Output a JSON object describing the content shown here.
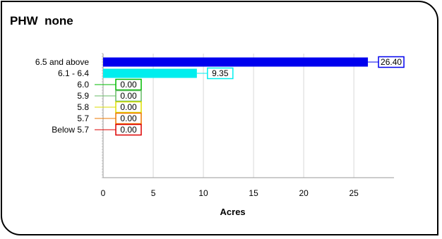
{
  "panel": {
    "title": "PHW  none"
  },
  "chart_data": {
    "type": "bar",
    "orientation": "horizontal",
    "title": "PHW  none",
    "xlabel": "Acres",
    "ylabel": "",
    "xlim": [
      0,
      29
    ],
    "x_ticks": [
      0,
      5,
      10,
      15,
      20,
      25
    ],
    "grid": "vertical",
    "categories": [
      "6.5 and above",
      "6.1 - 6.4",
      "6.0",
      "5.9",
      "5.8",
      "5.7",
      "Below 5.7"
    ],
    "values": [
      26.4,
      9.35,
      0.0,
      0.0,
      0.0,
      0.0,
      0.0
    ],
    "value_labels": [
      "26.40",
      "9.35",
      "0.00",
      "0.00",
      "0.00",
      "0.00",
      "0.00"
    ],
    "bar_colors": [
      "#0000ee",
      "#00eeee",
      "#00bb00",
      "#66bb66",
      "#dddd00",
      "#ee7700",
      "#dd0000"
    ]
  }
}
